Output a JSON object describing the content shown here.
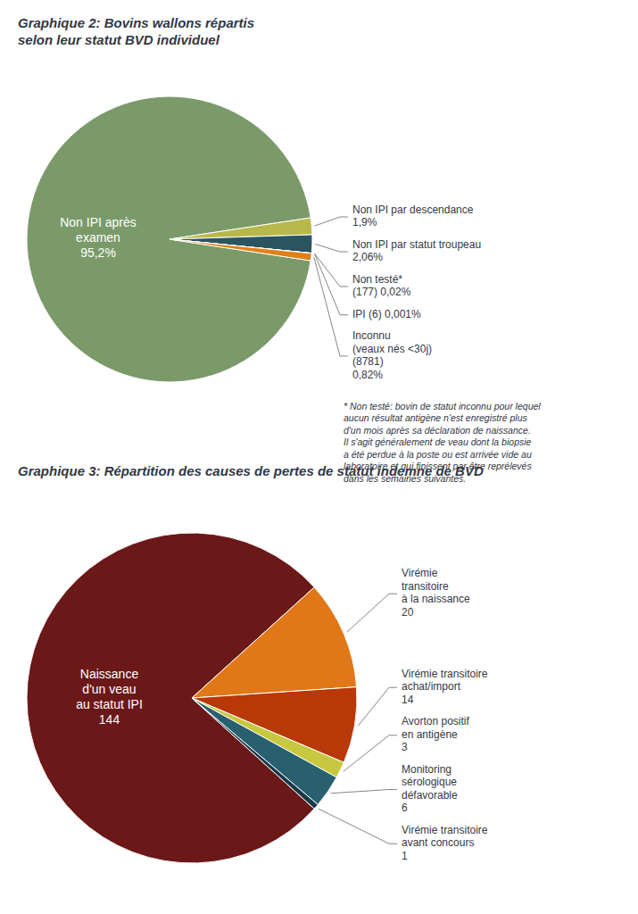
{
  "chart_data": [
    {
      "type": "pie",
      "title": "Graphique 2: Bovins wallons répartis\nselon leur statut BVD individuel",
      "categories": [
        "Non IPI après\nexamen\n95,2%",
        "Non IPI par descendance\n1,9%",
        "Non IPI par statut troupeau\n2,06%",
        "Non testé*\n(177) 0,02%",
        "IPI (6) 0,001%",
        "Inconnu\n(veaux nés <30j)\n(8781)\n0,82%"
      ],
      "values": [
        95.197,
        1.9,
        2.06,
        0.02,
        0.001,
        0.822
      ],
      "colors": [
        "#7a9a6a",
        "#b8b84a",
        "#2a5560",
        "#4a3828",
        "#6a1818",
        "#e08018"
      ],
      "annotations": [
        "* Non testé: bovin de statut inconnu pour lequel\naucun résultat antigène n'est enregistré plus\nd'un mois après sa déclaration de naissance.\nIl s'agit généralement de veau dont la biopsie\na été perdue à la poste ou est arrivée vide au\nlaboratoire et qui finissent par être reprélevés\ndans les semaines suivantes."
      ]
    },
    {
      "type": "pie",
      "title": "Graphique 3: Répartition des causes de pertes de statut indemne de BVD",
      "categories": [
        "Naissance\nd'un veau\nau statut IPI\n144",
        "Virémie\ntransitoire\nà la naissance\n20",
        "Virémie transitoire\nachat/import\n14",
        "Avorton positif\nen antigène\n3",
        "Monitoring\nsérologique\ndéfavorable\n6",
        "Virémie transitoire\navant concours\n1"
      ],
      "values": [
        144,
        20,
        14,
        3,
        6,
        1
      ],
      "colors": [
        "#6b1818",
        "#e07818",
        "#b83808",
        "#c8c840",
        "#286070",
        "#1a3848"
      ]
    }
  ]
}
